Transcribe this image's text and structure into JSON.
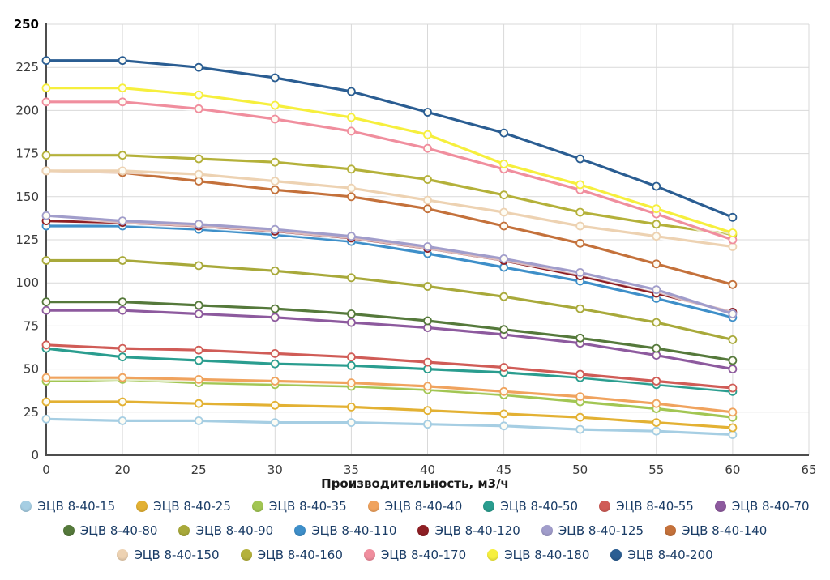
{
  "chart_data": {
    "type": "line",
    "title": "",
    "xlabel": "Производительность, м3/ч",
    "ylabel": "",
    "grid": true,
    "legend_position": "bottom",
    "ylim": [
      0,
      250
    ],
    "y_ticks": [
      0,
      25,
      50,
      75,
      100,
      125,
      150,
      175,
      200,
      225,
      250
    ],
    "x_ticks": [
      "0",
      "20",
      "25",
      "30",
      "35",
      "40",
      "45",
      "50",
      "55",
      "60",
      "65"
    ],
    "categories": [
      0,
      20,
      25,
      30,
      35,
      40,
      45,
      50,
      55,
      60
    ],
    "marker": "open-circle",
    "series": [
      {
        "name": "ЭЦВ 8-40-15",
        "color": "#a6cee3",
        "values": [
          21,
          20,
          20,
          19,
          19,
          18,
          17,
          15,
          14,
          12
        ]
      },
      {
        "name": "ЭЦВ 8-40-25",
        "color": "#e3b133",
        "values": [
          31,
          31,
          30,
          29,
          28,
          26,
          24,
          22,
          19,
          16
        ]
      },
      {
        "name": "ЭЦВ 8-40-35",
        "color": "#a2c653",
        "values": [
          43,
          44,
          42,
          41,
          40,
          38,
          35,
          31,
          27,
          22
        ]
      },
      {
        "name": "ЭЦВ 8-40-40",
        "color": "#f0a35e",
        "values": [
          45,
          45,
          44,
          43,
          42,
          40,
          37,
          34,
          30,
          25
        ]
      },
      {
        "name": "ЭЦВ 8-40-50",
        "color": "#2a9d8f",
        "values": [
          62,
          57,
          55,
          53,
          52,
          50,
          48,
          45,
          41,
          37
        ]
      },
      {
        "name": "ЭЦВ 8-40-55",
        "color": "#d05c57",
        "values": [
          64,
          62,
          61,
          59,
          57,
          54,
          51,
          47,
          43,
          39
        ]
      },
      {
        "name": "ЭЦВ 8-40-70",
        "color": "#8d5a9e",
        "values": [
          84,
          84,
          82,
          80,
          77,
          74,
          70,
          65,
          58,
          50
        ]
      },
      {
        "name": "ЭЦВ 8-40-80",
        "color": "#55793b",
        "values": [
          89,
          89,
          87,
          85,
          82,
          78,
          73,
          68,
          62,
          55
        ]
      },
      {
        "name": "ЭЦВ 8-40-90",
        "color": "#a8a93a",
        "values": [
          113,
          113,
          110,
          107,
          103,
          98,
          92,
          85,
          77,
          67
        ]
      },
      {
        "name": "ЭЦВ 8-40-110",
        "color": "#3e8fc9",
        "values": [
          133,
          133,
          131,
          128,
          124,
          117,
          109,
          101,
          91,
          80
        ]
      },
      {
        "name": "ЭЦВ 8-40-120",
        "color": "#8e1f24",
        "values": [
          136,
          135,
          133,
          130,
          126,
          120,
          113,
          104,
          94,
          83
        ]
      },
      {
        "name": "ЭЦВ 8-40-125",
        "color": "#a19dcb",
        "values": [
          139,
          136,
          134,
          131,
          127,
          121,
          114,
          106,
          96,
          82
        ]
      },
      {
        "name": "ЭЦВ 8-40-140",
        "color": "#c4713b",
        "values": [
          165,
          164,
          159,
          154,
          150,
          143,
          133,
          123,
          111,
          99
        ]
      },
      {
        "name": "ЭЦВ 8-40-150",
        "color": "#edd2b2",
        "values": [
          165,
          165,
          163,
          159,
          155,
          148,
          141,
          133,
          127,
          121
        ]
      },
      {
        "name": "ЭЦВ 8-40-160",
        "color": "#b4b13a",
        "values": [
          174,
          174,
          172,
          170,
          166,
          160,
          151,
          141,
          134,
          128
        ]
      },
      {
        "name": "ЭЦВ 8-40-170",
        "color": "#f08e9e",
        "values": [
          205,
          205,
          201,
          195,
          188,
          178,
          166,
          154,
          140,
          125
        ]
      },
      {
        "name": "ЭЦВ 8-40-180",
        "color": "#f6ef3d",
        "values": [
          213,
          213,
          209,
          203,
          196,
          186,
          169,
          157,
          143,
          129
        ]
      },
      {
        "name": "ЭЦВ 8-40-200",
        "color": "#2a5d92",
        "values": [
          229,
          229,
          225,
          219,
          211,
          199,
          187,
          172,
          156,
          138
        ]
      }
    ]
  }
}
